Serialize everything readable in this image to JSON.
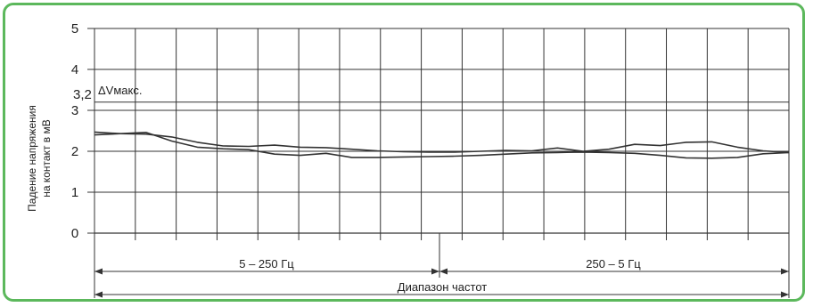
{
  "chart_data": {
    "type": "line",
    "ylabel_lines": [
      "Падение напряжения",
      "на контакт в мВ"
    ],
    "ylim": [
      0,
      5
    ],
    "yticks": [
      "0",
      "1",
      "2",
      "3",
      "4",
      "5"
    ],
    "ref_line": {
      "value": 3.2,
      "tick_label": "3,2",
      "label": "ΔVмакс."
    },
    "x_columns": 17,
    "grid": true,
    "series": [
      {
        "values": [
          2.47,
          2.43,
          2.42,
          2.35,
          2.22,
          2.13,
          2.12,
          2.15,
          2.1,
          2.09,
          2.05,
          2.01,
          1.99,
          1.98,
          1.98,
          2.0,
          2.02,
          2.01,
          2.08,
          2.0,
          2.05,
          2.17,
          2.14,
          2.22,
          2.23,
          2.1,
          2.01,
          1.97
        ]
      },
      {
        "values": [
          2.4,
          2.43,
          2.46,
          2.25,
          2.1,
          2.06,
          2.04,
          1.93,
          1.9,
          1.95,
          1.85,
          1.85,
          1.86,
          1.87,
          1.88,
          1.9,
          1.93,
          1.96,
          1.97,
          1.98,
          1.97,
          1.95,
          1.9,
          1.84,
          1.83,
          1.85,
          1.94,
          1.97
        ]
      }
    ],
    "ranges": [
      {
        "label": "5 – 250 Гц"
      },
      {
        "label": "250 – 5 Гц"
      }
    ],
    "total_range": {
      "label": "Диапазон частот"
    }
  },
  "colors": {
    "frame": "#5cb85c",
    "lines": "#333333"
  }
}
